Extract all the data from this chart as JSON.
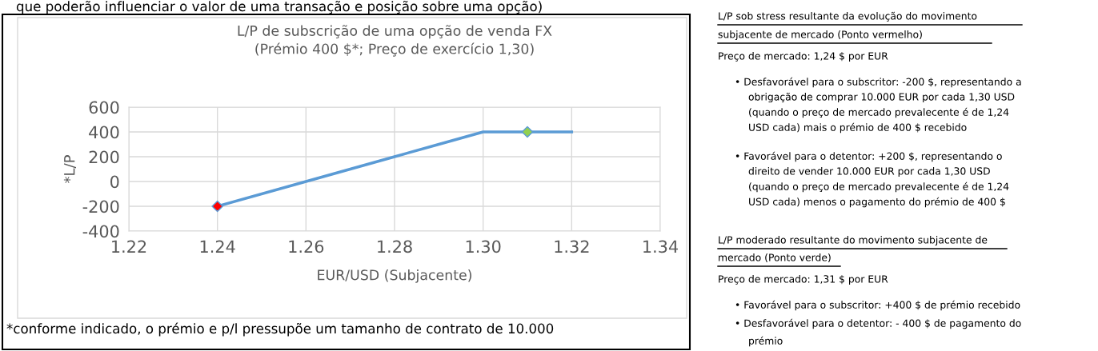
{
  "chart_data": {
    "type": "line",
    "title": "L/P de subscrição de uma opção de venda FX\n(Prémio 400 $*; Preço de exercício 1,30)",
    "xlabel": "EUR/USD (Subjacente)",
    "ylabel": "*L/P",
    "series": [
      {
        "color": "#5b9bd5",
        "x": [
          1.24,
          1.26,
          1.27,
          1.28,
          1.29,
          1.3,
          1.31,
          1.32
        ],
        "values": [
          -200,
          0,
          100,
          200,
          300,
          400,
          400,
          400
        ]
      },
      {
        "type": "scatter",
        "marker": "diamond",
        "colors": [
          "#ff0000",
          "#92d050"
        ],
        "x": [
          1.24,
          1.31
        ],
        "values": [
          -200,
          400
        ]
      }
    ],
    "xlim": [
      1.22,
      1.34
    ],
    "xticks": [
      {
        "value": 1.22,
        "label": "1.22"
      },
      {
        "value": 1.24,
        "label": "1.24"
      },
      {
        "value": 1.26,
        "label": "1.26"
      },
      {
        "value": 1.28,
        "label": "1.28"
      },
      {
        "value": 1.3,
        "label": "1.30"
      },
      {
        "value": 1.32,
        "label": "1.32"
      },
      {
        "value": 1.34,
        "label": "1.34"
      }
    ],
    "ylim": [
      -400,
      600
    ],
    "yticks": [
      -400,
      -200,
      0,
      200,
      400,
      600
    ],
    "grid": true,
    "annotations": [
      "que poderão influenciar o valor de uma transação e posição sobre uma opção)",
      "*conforme indicado, o prémio e p/l pressupõe um tamanho de contrato de 10.000",
      "L/P sob stress resultante da evolução do movimento",
      "subjacente de mercado (Ponto vermelho)",
      "Preço de mercado: 1,24 $ por EUR",
      "• Desfavorável para o subscritor: -200 $, representando a",
      "obrigação de comprar 10.000 EUR por cada 1,30 USD",
      "(quando o preço de mercado prevalecente é de 1,24",
      "USD cada) mais o prémio de 400 $ recebido",
      "• Favorável para o detentor: +200 $, representando o",
      "direito de vender 10.000 EUR por cada 1,30 USD",
      "(quando o preço de mercado prevalecente é de 1,24",
      "USD cada) menos o pagamento do prémio de 400 $",
      "L/P moderado resultante do movimento subjacente de",
      "mercado (Ponto verde)",
      "Preço de mercado: 1,31 $ por EUR",
      "• Favorável para o subscritor: +400 $ de prémio recebido",
      "• Desfavorável para o detentor: - 400 $ de pagamento do",
      "prémio"
    ]
  }
}
